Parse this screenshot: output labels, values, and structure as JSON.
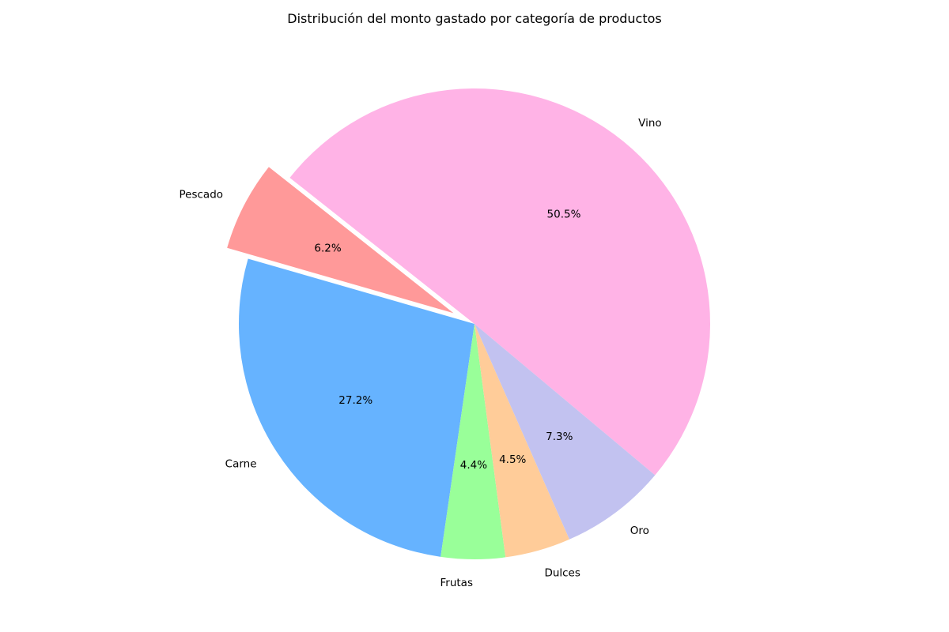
{
  "chart_data": {
    "type": "pie",
    "title": "Distribución del monto gastado por categoría de productos",
    "slices": [
      {
        "label": "Vino",
        "value": 50.5,
        "value_label": "50.5%",
        "color": "#ffb3e6",
        "exploded": false
      },
      {
        "label": "Pescado",
        "value": 6.2,
        "value_label": "6.2%",
        "color": "#ff9999",
        "exploded": true
      },
      {
        "label": "Carne",
        "value": 27.2,
        "value_label": "27.2%",
        "color": "#66b3ff",
        "exploded": false
      },
      {
        "label": "Frutas",
        "value": 4.4,
        "value_label": "4.4%",
        "color": "#99ff99",
        "exploded": false
      },
      {
        "label": "Dulces",
        "value": 4.5,
        "value_label": "4.5%",
        "color": "#ffcc99",
        "exploded": false
      },
      {
        "label": "Oro",
        "value": 7.3,
        "value_label": "7.3%",
        "color": "#c2c2f0",
        "exploded": false
      }
    ],
    "legend": false
  }
}
